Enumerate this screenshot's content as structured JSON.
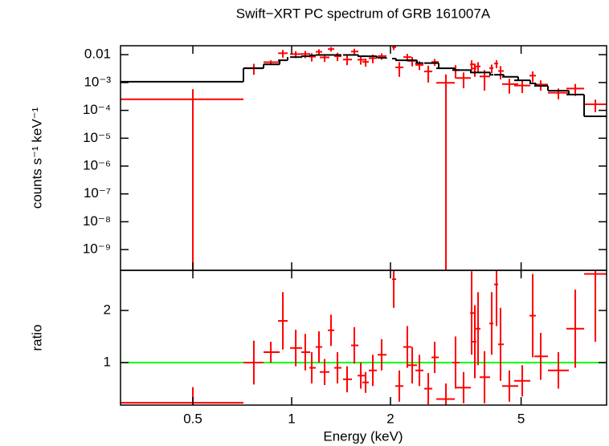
{
  "chart_data": [
    {
      "type": "errorbar",
      "title": "Swift−XRT PC spectrum of GRB 161007A",
      "ylabel": "counts s⁻¹ keV⁻¹",
      "xscale": "log",
      "yscale": "log",
      "xlim": [
        0.301,
        9.107
      ],
      "ylim": [
        1.8e-10,
        0.021
      ],
      "yticks": [
        0.01,
        {
          "value": 0.001,
          "label": "10⁻³"
        },
        {
          "value": 0.0001,
          "label": "10⁻⁴"
        },
        {
          "value": 1e-05,
          "label": "10⁻⁵"
        },
        {
          "value": 1e-06,
          "label": "10⁻⁶"
        },
        {
          "value": 1e-07,
          "label": "10⁻⁷"
        },
        {
          "value": 1e-08,
          "label": "10⁻⁸"
        },
        {
          "value": 1e-09,
          "label": "10⁻⁹"
        }
      ],
      "x": [
        0.5,
        0.767,
        0.864,
        0.94,
        1.029,
        1.1,
        1.151,
        1.211,
        1.26,
        1.318,
        1.379,
        1.475,
        1.552,
        1.624,
        1.68,
        1.767,
        1.88,
        2.046,
        2.128,
        2.251,
        2.329,
        2.45,
        2.607,
        2.727,
        2.951,
        3.157,
        3.34,
        3.534,
        3.614,
        3.697,
        3.868,
        4.068,
        4.208,
        4.328,
        4.605,
        5.04,
        5.424,
        5.737,
        6.494,
        7.311,
        8.418
      ],
      "xlo": [
        0.301,
        0.713,
        0.821,
        0.909,
        0.989,
        1.07,
        1.132,
        1.184,
        1.218,
        1.289,
        1.348,
        1.434,
        1.517,
        1.588,
        1.642,
        1.718,
        1.828,
        2.023,
        2.069,
        2.189,
        2.264,
        2.382,
        2.534,
        2.667,
        2.758,
        3.087,
        3.175,
        3.494,
        3.554,
        3.635,
        3.739,
        4.0,
        4.138,
        4.256,
        4.377,
        4.764,
        5.303,
        5.485,
        6.035,
        6.871,
        7.779
      ],
      "xhi": [
        0.713,
        0.821,
        0.919,
        0.972,
        1.076,
        1.139,
        1.184,
        1.239,
        1.303,
        1.348,
        1.418,
        1.526,
        1.597,
        1.67,
        1.718,
        1.818,
        1.945,
        2.081,
        2.189,
        2.316,
        2.409,
        2.52,
        2.682,
        2.805,
        3.14,
        3.247,
        3.514,
        3.594,
        3.655,
        3.76,
        4.023,
        4.115,
        4.256,
        4.427,
        4.9,
        5.333,
        5.546,
        6.035,
        6.988,
        7.779,
        9.107
      ],
      "series": [
        {
          "color": "#ff0000",
          "values": [
            0.00025,
            0.0033,
            0.0054,
            0.0113,
            0.0105,
            0.0106,
            0.0085,
            0.0127,
            0.008,
            0.0159,
            0.0088,
            0.0067,
            0.013,
            0.0066,
            0.0055,
            0.0075,
            0.0089,
            0.0187,
            0.0035,
            0.0082,
            0.006,
            0.0043,
            0.0025,
            0.0055,
            0.00098,
            0.0028,
            0.00146,
            0.0045,
            0.0032,
            0.0038,
            0.00166,
            0.0033,
            0.0048,
            0.0026,
            0.00088,
            0.00078,
            0.00177,
            0.00085,
            0.00043,
            0.00061,
            0.000165
          ],
          "errors": [
            0.00033,
            0.0014,
            0.0009,
            0.0035,
            0.0029,
            0.0031,
            0.0028,
            0.0029,
            0.0025,
            0.0029,
            0.0029,
            0.0025,
            0.0034,
            0.0022,
            0.0018,
            0.0026,
            0.0023,
            0.004,
            0.0019,
            0.0025,
            0.0022,
            0.0015,
            0.0015,
            0.0015,
            0.00098,
            0.0014,
            0.00084,
            0.0018,
            0.0016,
            0.0016,
            0.00115,
            0.0011,
            0.0015,
            0.0013,
            0.00048,
            0.00036,
            0.00074,
            0.00034,
            0.00018,
            0.00028,
            7.9e-05
          ]
        },
        {
          "color": "#000000",
          "step": true,
          "values": [
            0.00107,
            0.00325,
            0.0045,
            0.0063,
            0.0082,
            0.0088,
            0.0094,
            0.0098,
            0.0098,
            0.0098,
            0.0098,
            0.0098,
            0.0098,
            0.0088,
            0.0088,
            0.0088,
            0.0077,
            0.0072,
            0.0063,
            0.0063,
            0.0063,
            0.005,
            0.005,
            0.005,
            0.00325,
            0.0028,
            0.0028,
            0.0023,
            0.0023,
            0.0023,
            0.0023,
            0.0019,
            0.0019,
            0.0019,
            0.0016,
            0.0012,
            0.00093,
            0.00076,
            0.00051,
            0.00037,
            6.1e-05
          ]
        }
      ]
    },
    {
      "type": "errorbar",
      "xlabel": "Energy (keV)",
      "ylabel": "ratio",
      "xscale": "log",
      "yscale": "linear",
      "xlim": [
        0.301,
        9.107
      ],
      "ylim": [
        0.185,
        2.77
      ],
      "xticks": [
        0.5,
        1,
        2,
        5
      ],
      "yticks": [
        1,
        2
      ],
      "reference": {
        "value": 1,
        "color": "#00ff00"
      },
      "x": [
        0.5,
        0.767,
        0.864,
        0.94,
        1.029,
        1.1,
        1.151,
        1.211,
        1.26,
        1.318,
        1.379,
        1.475,
        1.552,
        1.624,
        1.68,
        1.767,
        1.88,
        2.046,
        2.128,
        2.251,
        2.329,
        2.45,
        2.607,
        2.727,
        2.951,
        3.157,
        3.34,
        3.534,
        3.614,
        3.697,
        3.868,
        4.068,
        4.208,
        4.328,
        4.605,
        5.04,
        5.424,
        5.737,
        6.494,
        7.311,
        8.418
      ],
      "xlo": [
        0.301,
        0.713,
        0.821,
        0.909,
        0.989,
        1.07,
        1.132,
        1.184,
        1.218,
        1.289,
        1.348,
        1.434,
        1.517,
        1.588,
        1.642,
        1.718,
        1.828,
        2.023,
        2.069,
        2.189,
        2.264,
        2.382,
        2.534,
        2.667,
        2.758,
        3.087,
        3.175,
        3.494,
        3.554,
        3.635,
        3.739,
        4.0,
        4.138,
        4.256,
        4.377,
        4.764,
        5.303,
        5.485,
        6.035,
        6.871,
        7.779
      ],
      "xhi": [
        0.713,
        0.821,
        0.919,
        0.972,
        1.076,
        1.139,
        1.184,
        1.239,
        1.303,
        1.348,
        1.418,
        1.526,
        1.597,
        1.67,
        1.718,
        1.818,
        1.945,
        2.081,
        2.189,
        2.316,
        2.409,
        2.52,
        2.682,
        2.805,
        3.14,
        3.247,
        3.514,
        3.594,
        3.655,
        3.76,
        4.023,
        4.115,
        4.256,
        4.427,
        4.9,
        5.333,
        5.546,
        6.035,
        6.988,
        7.779,
        9.107
      ],
      "series": [
        {
          "color": "#ff0000",
          "values": [
            0.23,
            1.0,
            1.2,
            1.8,
            1.28,
            1.2,
            0.9,
            1.3,
            0.82,
            1.62,
            0.9,
            0.68,
            1.33,
            0.75,
            0.62,
            0.85,
            1.15,
            2.6,
            0.55,
            1.3,
            0.95,
            0.85,
            0.5,
            1.1,
            0.3,
            1.0,
            0.52,
            1.95,
            1.4,
            1.65,
            0.72,
            1.75,
            2.5,
            1.35,
            0.55,
            0.65,
            1.9,
            1.12,
            0.85,
            1.65,
            2.7
          ],
          "errors": [
            0.3,
            0.42,
            0.2,
            0.55,
            0.35,
            0.35,
            0.3,
            0.3,
            0.25,
            0.3,
            0.3,
            0.25,
            0.35,
            0.25,
            0.2,
            0.3,
            0.3,
            0.55,
            0.3,
            0.4,
            0.35,
            0.3,
            0.3,
            0.3,
            0.3,
            0.5,
            0.3,
            0.8,
            0.7,
            0.7,
            0.5,
            0.6,
            0.8,
            0.7,
            0.3,
            0.3,
            0.8,
            0.45,
            0.35,
            0.75,
            1.3
          ]
        }
      ]
    }
  ]
}
